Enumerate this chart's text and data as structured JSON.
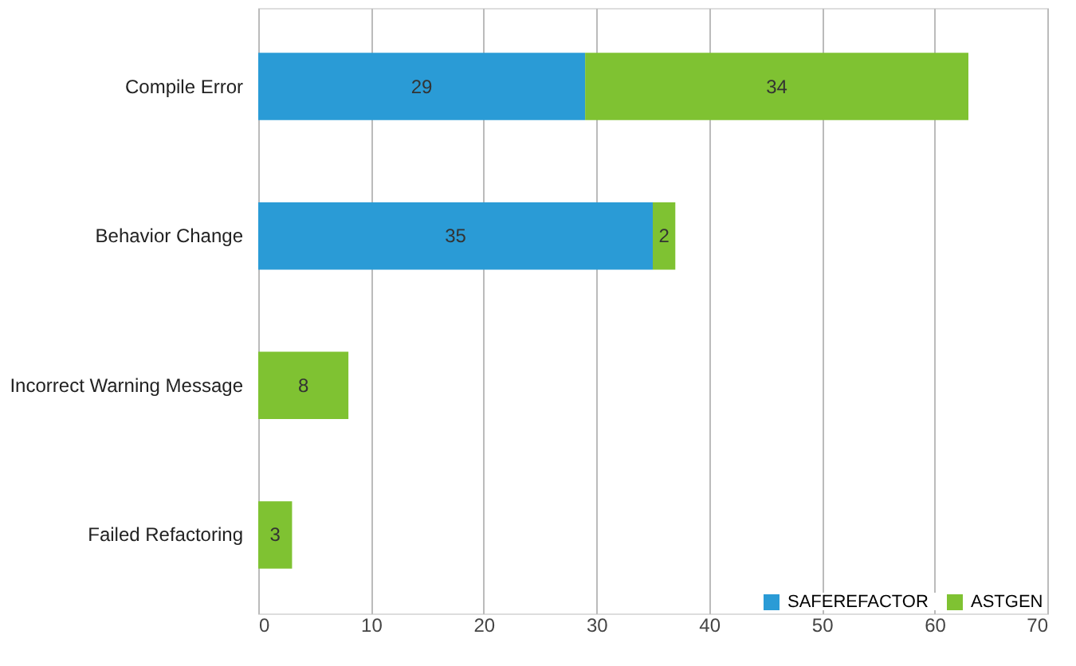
{
  "chart_data": {
    "type": "bar",
    "orientation": "horizontal",
    "stacked": true,
    "categories": [
      "Compile Error",
      "Behavior Change",
      "Incorrect Warning Message",
      "Failed Refactoring"
    ],
    "series": [
      {
        "name": "SAFEREFACTOR",
        "color": "#2a9bd6",
        "values": [
          29,
          35,
          null,
          null
        ]
      },
      {
        "name": "ASTGEN",
        "color": "#7fc232",
        "values": [
          34,
          2,
          8,
          3
        ]
      }
    ],
    "xlim": [
      0,
      70
    ],
    "xticks": [
      0,
      10,
      20,
      30,
      40,
      50,
      60,
      70
    ],
    "grid": "x",
    "legend": "bottom right",
    "data_labels": true
  }
}
